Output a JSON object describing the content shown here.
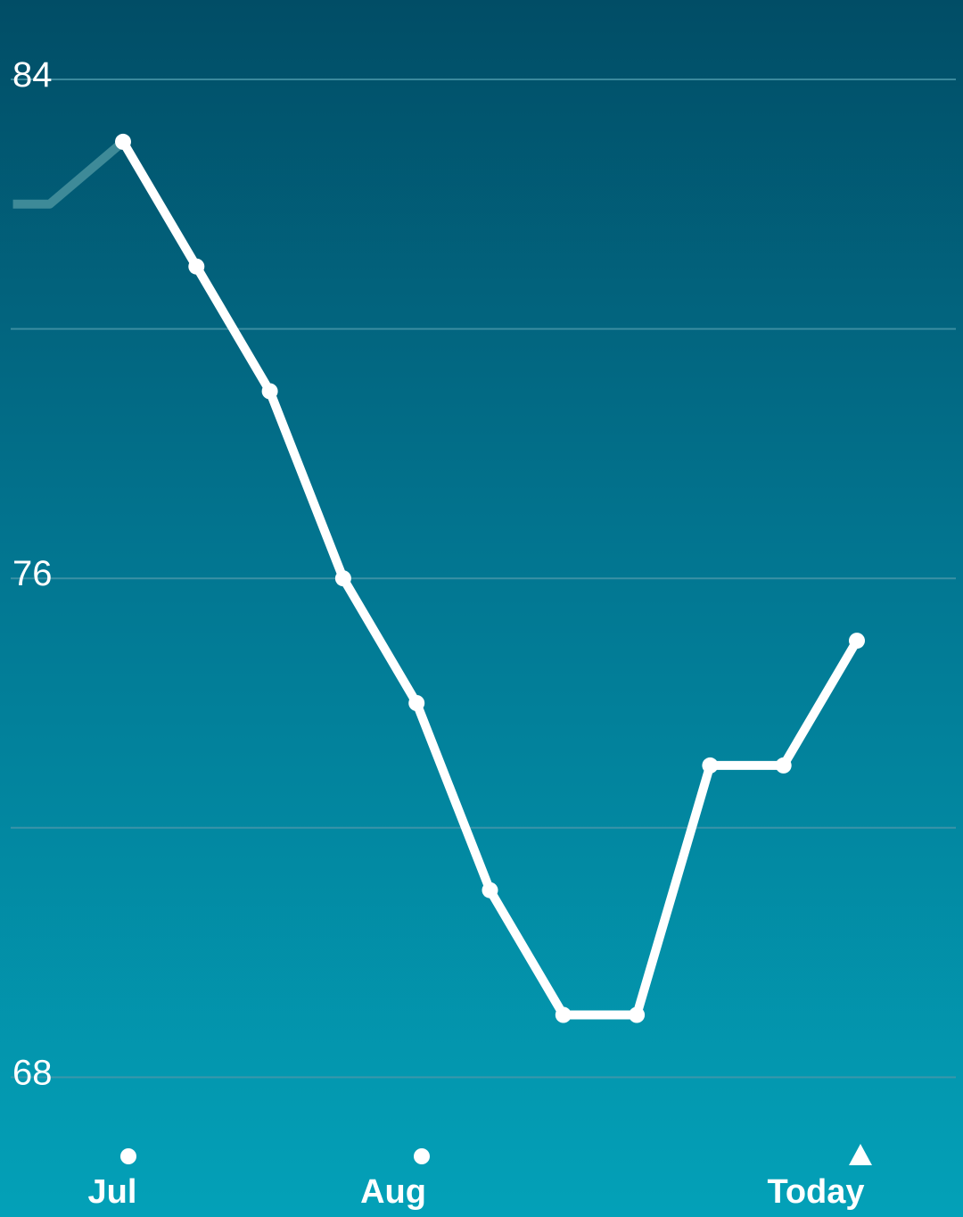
{
  "chart_data": {
    "type": "line",
    "title": "",
    "xlabel": "",
    "ylabel": "",
    "ylim": [
      68,
      84
    ],
    "y_ticks": [
      68,
      76,
      84
    ],
    "y_tick_labels": [
      "68",
      "76",
      "84"
    ],
    "gridlines": [
      68,
      72,
      76,
      80,
      84
    ],
    "grid": true,
    "x_markers": [
      {
        "label": "Jul",
        "x": 1,
        "marker": "dot"
      },
      {
        "label": "Aug",
        "x": 5,
        "marker": "dot"
      },
      {
        "label": "Today",
        "x": 11,
        "marker": "triangle"
      }
    ],
    "faded_segment": {
      "x": [
        -0.5,
        0.0,
        1.0
      ],
      "y": [
        82.0,
        82.0,
        83.0
      ]
    },
    "series": [
      {
        "x": [
          1,
          2,
          3,
          4,
          5,
          6,
          7,
          8,
          9,
          10,
          11
        ],
        "y": [
          83.0,
          81.0,
          79.0,
          76.0,
          74.0,
          71.0,
          69.0,
          69.0,
          73.0,
          73.0,
          75.0
        ]
      }
    ]
  },
  "colors": {
    "line": "#ffffff",
    "faded_line": "#3e8a98",
    "grid": "#4a97aa",
    "text": "#ffffff"
  }
}
